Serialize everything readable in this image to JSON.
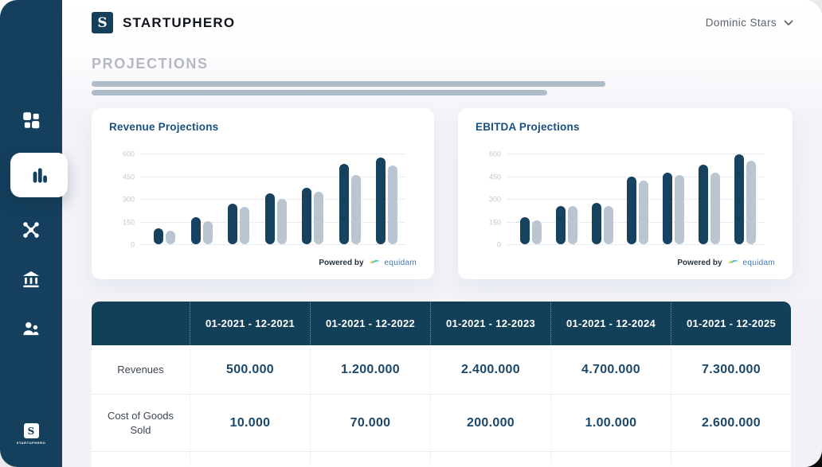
{
  "header": {
    "logo_letter": "S",
    "brand": "STARTUPHERO",
    "user": {
      "name": "Dominic Stars"
    }
  },
  "sidebar": {
    "items": [
      {
        "id": "dashboard",
        "icon": "dashboard-icon",
        "active": false
      },
      {
        "id": "projections",
        "icon": "bar-chart-icon",
        "active": true
      },
      {
        "id": "network",
        "icon": "network-icon",
        "active": false
      },
      {
        "id": "bank",
        "icon": "bank-icon",
        "active": false
      },
      {
        "id": "team",
        "icon": "users-icon",
        "active": false
      }
    ],
    "footer_logo_letter": "S",
    "footer_logo_text": "STARTUPHERO"
  },
  "page": {
    "title": "PROJECTIONS"
  },
  "chart_data": [
    {
      "type": "bar",
      "title": "Revenue Projections",
      "categories": [
        "",
        "",
        "",
        "",
        "",
        "",
        ""
      ],
      "series": [
        {
          "name": "dark",
          "color": "#16415f",
          "values": [
            105,
            180,
            270,
            335,
            375,
            530,
            575
          ]
        },
        {
          "name": "light",
          "color": "#b9c6d2",
          "values": [
            90,
            155,
            250,
            300,
            350,
            460,
            520
          ]
        }
      ],
      "yticks": [
        0,
        150,
        300,
        450,
        600
      ],
      "ylim": [
        0,
        600
      ],
      "grid": "dotted-horizontal",
      "legend": "none",
      "x_axis_labels": "none",
      "powered_by": "Powered by",
      "vendor": "equidam"
    },
    {
      "type": "bar",
      "title": "EBITDA Projections",
      "categories": [
        "",
        "",
        "",
        "",
        "",
        "",
        ""
      ],
      "series": [
        {
          "name": "dark",
          "color": "#16415f",
          "values": [
            180,
            255,
            275,
            445,
            475,
            525,
            595
          ]
        },
        {
          "name": "light",
          "color": "#b9c6d2",
          "values": [
            160,
            255,
            255,
            420,
            460,
            475,
            555
          ]
        }
      ],
      "yticks": [
        0,
        150,
        300,
        450,
        600
      ],
      "ylim": [
        0,
        600
      ],
      "grid": "dotted-horizontal",
      "legend": "none",
      "x_axis_labels": "none",
      "powered_by": "Powered by",
      "vendor": "equidam"
    }
  ],
  "table": {
    "columns": [
      "",
      "01-2021 - 12-2021",
      "01-2021 - 12-2022",
      "01-2021 - 12-2023",
      "01-2021 - 12-2024",
      "01-2021 - 12-2025"
    ],
    "rows": [
      {
        "label": "Revenues",
        "values": [
          "500.000",
          "1.200.000",
          "2.400.000",
          "4.700.000",
          "7.300.000"
        ]
      },
      {
        "label": "Cost of Goods Sold",
        "values": [
          "10.000",
          "70.000",
          "200.000",
          "1.00.000",
          "2.600.000"
        ]
      },
      {
        "label": "",
        "values": [
          "",
          "",
          "",
          "",
          ""
        ]
      }
    ]
  },
  "colors": {
    "sidebar_navy": "#14405d",
    "table_header_navy": "#134059",
    "bar_dark": "#16415f",
    "bar_light": "#b9c6d2",
    "page_bg": "#f1f2f8",
    "chart_title": "#1a5080",
    "value_navy": "#1c4769",
    "muted_title": "#b4b9c1",
    "vendor_blue": "#3a78c2",
    "vendor_cyan": "#35c4d7",
    "vendor_yellow": "#f2c13c"
  }
}
